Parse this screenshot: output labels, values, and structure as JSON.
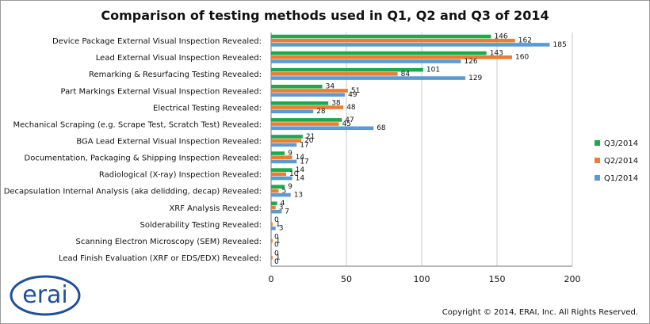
{
  "chart_data": {
    "type": "bar",
    "orientation": "horizontal",
    "title": "Comparison of testing methods used in Q1, Q2 and Q3 of 2014",
    "categories": [
      "Device Package External Visual Inspection Revealed:",
      "Lead External Visual Inspection Revealed:",
      "Remarking & Resurfacing Testing Revealed:",
      "Part Markings External Visual Inspection Revealed:",
      "Electrical Testing Revealed:",
      "Mechanical Scraping (e.g. Scrape Test, Scratch Test) Revealed:",
      "BGA Lead External Visual Inspection Revealed:",
      "Documentation, Packaging & Shipping Inspection Revealed:",
      "Radiological (X-ray) Inspection Revealed:",
      "Decapsulation Internal Analysis (aka delidding, decap) Revealed:",
      "XRF Analysis Revealed:",
      "Solderability Testing Revealed:",
      "Scanning Electron Microscopy (SEM) Revealed:",
      "Lead Finish Evaluation  (XRF or EDS/EDX) Revealed:"
    ],
    "series": [
      {
        "name": "Q3/2014",
        "color": "#1aab4b",
        "values": [
          146,
          143,
          101,
          34,
          38,
          47,
          21,
          9,
          14,
          9,
          4,
          0,
          0,
          0
        ]
      },
      {
        "name": "Q2/2014",
        "color": "#ee7d31",
        "values": [
          162,
          160,
          84,
          51,
          48,
          45,
          20,
          14,
          10,
          5,
          3,
          1,
          1,
          1
        ]
      },
      {
        "name": "Q1/2014",
        "color": "#5b9bd5",
        "values": [
          185,
          126,
          129,
          49,
          28,
          68,
          17,
          17,
          14,
          13,
          7,
          3,
          0,
          0
        ]
      }
    ],
    "xlim": [
      0,
      200
    ],
    "xticks": [
      "0",
      "50",
      "100",
      "150",
      "200"
    ],
    "grid": true,
    "legend_position": "right"
  },
  "logo": {
    "text": "erai"
  },
  "copyright": "Copyright © 2014, ERAI, Inc.  All Rights Reserved."
}
